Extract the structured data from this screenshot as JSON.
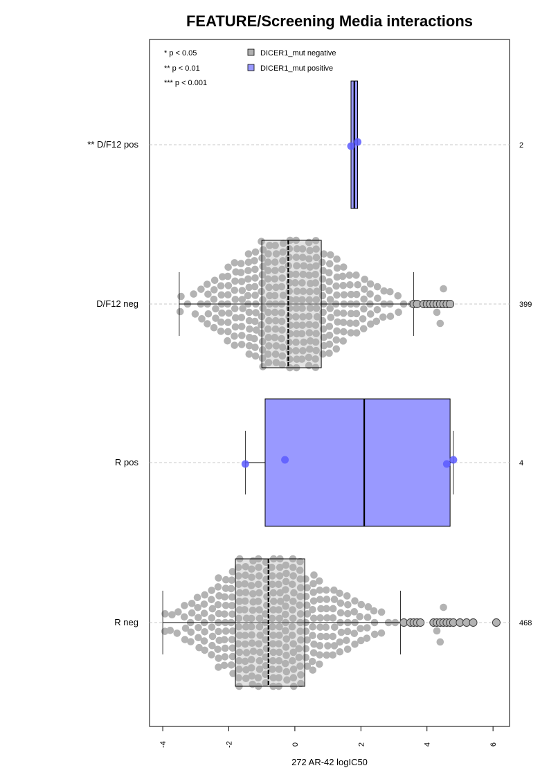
{
  "chart_data": {
    "type": "boxplot",
    "title": "FEATURE/Screening Media interactions",
    "xlabel": "272 AR-42 logIC50",
    "xlim": [
      -4.4,
      6.5
    ],
    "x_ticks": [
      "-4",
      "-2",
      "0",
      "2",
      "4",
      "6"
    ],
    "orientation": "horizontal",
    "legend": {
      "position": "top-left",
      "significance": [
        "* p < 0.05",
        "** p < 0.01",
        "*** p < 0.001"
      ],
      "entries": [
        {
          "label": "DICER1_mut negative",
          "color": "#b0b0b0"
        },
        {
          "label": "DICER1_mut positive",
          "color": "#9999ff"
        }
      ]
    },
    "groups": [
      {
        "label": "** D/F12 pos",
        "n": "2",
        "status": "positive",
        "q1": 1.7,
        "median": 1.8,
        "q3": 1.9,
        "whisker_low": 1.7,
        "whisker_high": 1.9,
        "points": [
          1.7,
          1.9
        ],
        "outliers": []
      },
      {
        "label": "D/F12 neg",
        "n": "399",
        "status": "negative",
        "q1": -1.0,
        "median": -0.2,
        "q3": 0.8,
        "whisker_low": -3.5,
        "whisker_high": 3.6,
        "outliers": [
          3.6,
          3.7,
          3.9,
          4.0,
          4.1,
          4.2,
          4.3,
          4.4,
          4.5,
          4.6,
          4.7
        ]
      },
      {
        "label": "R pos",
        "n": "4",
        "status": "positive",
        "q1": -0.9,
        "median": 2.1,
        "q3": 4.7,
        "whisker_low": -1.5,
        "whisker_high": 4.8,
        "points": [
          -1.5,
          -0.3,
          4.6,
          4.8
        ],
        "outliers": []
      },
      {
        "label": "R neg",
        "n": "468",
        "status": "negative",
        "q1": -1.8,
        "median": -0.8,
        "q3": 0.3,
        "whisker_low": -4.0,
        "whisker_high": 3.2,
        "outliers": [
          3.3,
          3.5,
          3.6,
          3.7,
          3.8,
          4.2,
          4.3,
          4.4,
          4.5,
          4.6,
          4.7,
          4.8,
          5.0,
          5.2,
          5.4,
          6.1
        ]
      }
    ],
    "grid": "dashed lines at group centers"
  }
}
